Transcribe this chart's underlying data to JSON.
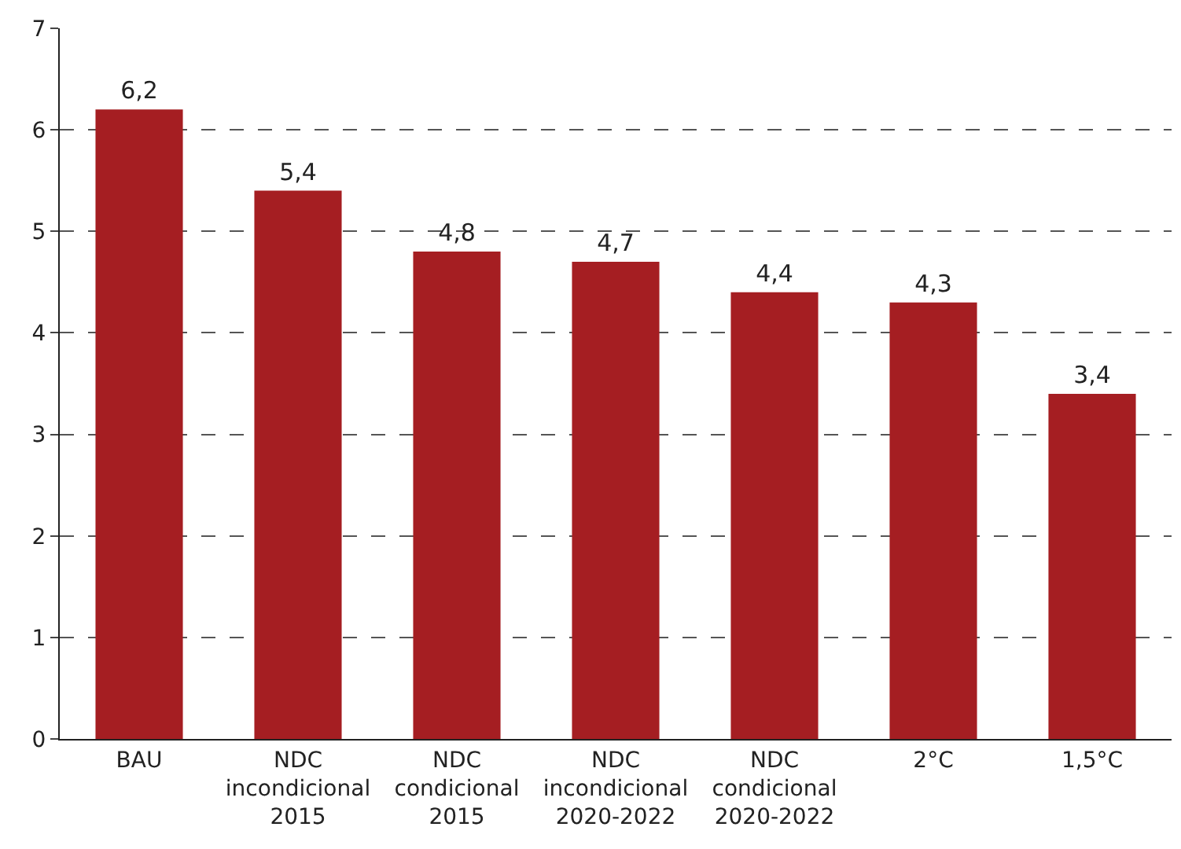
{
  "chart_data": {
    "type": "bar",
    "categories": [
      "BAU",
      "NDC\nincondicional\n2015",
      "NDC\ncondicional\n2015",
      "NDC\nincondicional\n2020-2022",
      "NDC\ncondicional\n2020-2022",
      "2°C",
      "1,5°C"
    ],
    "values": [
      6.2,
      5.4,
      4.8,
      4.7,
      4.4,
      4.3,
      3.4
    ],
    "value_labels": [
      "6,2",
      "5,4",
      "4,8",
      "4,7",
      "4,4",
      "4,3",
      "3,4"
    ],
    "color": "#a51e22",
    "ylim": [
      0,
      7
    ],
    "yticks": [
      0,
      1,
      2,
      3,
      4,
      5,
      6,
      7
    ],
    "grid": "y"
  }
}
